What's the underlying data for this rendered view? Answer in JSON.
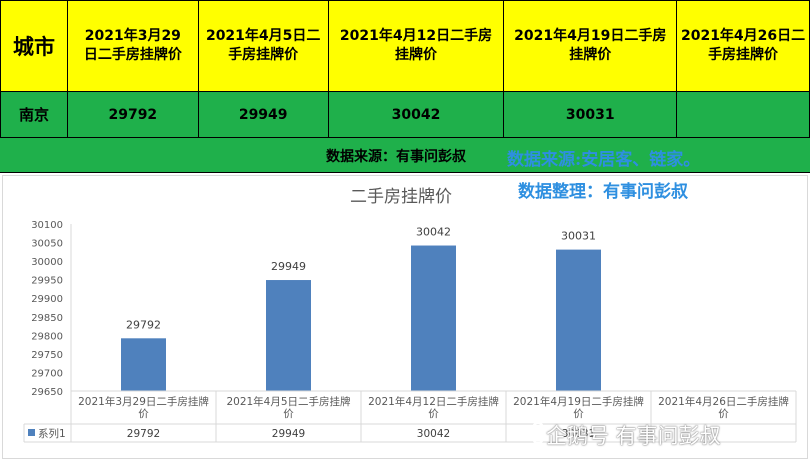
{
  "table": {
    "city_header": "城市",
    "date_headers": [
      "2021年3月29日二手房挂牌价",
      "2021年4月5日二手房挂牌价",
      "2021年4月12日二手房挂牌价",
      "2021年4月19日二手房挂牌价",
      "2021年4月26日二手房挂牌价"
    ],
    "city": "南京",
    "values": [
      "29792",
      "29949",
      "30042",
      "30031",
      ""
    ]
  },
  "source_left": "数据来源：有事问彭叔",
  "source_right": "数据来源:安居客、链家。",
  "organizer": "数据整理：有事问彭叔",
  "watermark": "企鹅号 有事问彭叔",
  "colors": {
    "header_bg": "#ffff00",
    "row_bg": "#1fb04b",
    "bar": "#4f81bd",
    "overlay_text": "#2e8fe0"
  },
  "chart_data": {
    "type": "bar",
    "title": "二手房挂牌价",
    "categories": [
      "2021年3月29日二手房挂牌价",
      "2021年4月5日二手房挂牌价",
      "2021年4月12日二手房挂牌价",
      "2021年4月19日二手房挂牌价",
      "2021年4月26日二手房挂牌价"
    ],
    "series": [
      {
        "name": "系列1",
        "values": [
          29792,
          29949,
          30042,
          30031,
          null
        ]
      }
    ],
    "ylim": [
      29650,
      30100
    ],
    "ytick_step": 50,
    "grid": false,
    "data_table": true
  }
}
